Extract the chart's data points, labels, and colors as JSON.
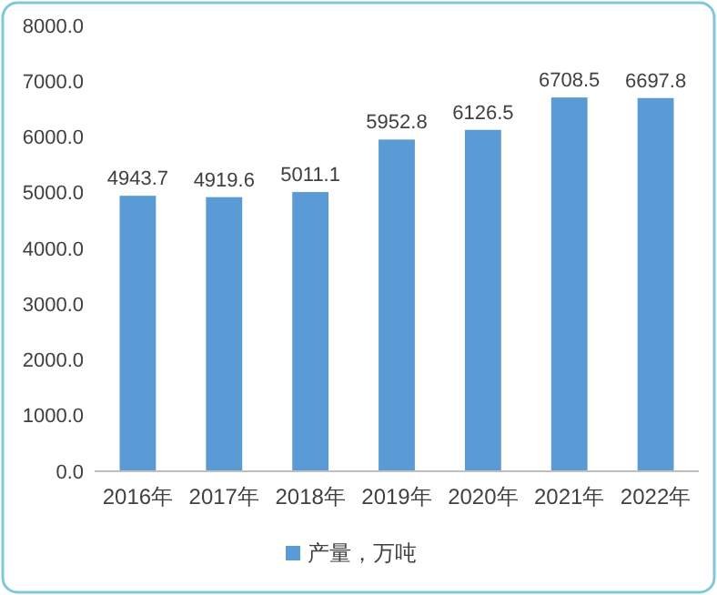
{
  "chart_data": {
    "type": "bar",
    "categories": [
      "2016年",
      "2017年",
      "2018年",
      "2019年",
      "2020年",
      "2021年",
      "2022年"
    ],
    "series": [
      {
        "name": "产量，万吨",
        "color": "#5b9bd5",
        "values": [
          4943.7,
          4919.6,
          5011.1,
          5952.8,
          6126.5,
          6708.5,
          6697.8
        ]
      }
    ],
    "ylim": [
      0,
      8000
    ],
    "yticks": [
      {
        "value": 0,
        "label": "0.0"
      },
      {
        "value": 1000,
        "label": "1000.0"
      },
      {
        "value": 2000,
        "label": "2000.0"
      },
      {
        "value": 3000,
        "label": "3000.0"
      },
      {
        "value": 4000,
        "label": "4000.0"
      },
      {
        "value": 5000,
        "label": "5000.0"
      },
      {
        "value": 6000,
        "label": "6000.0"
      },
      {
        "value": 7000,
        "label": "7000.0"
      },
      {
        "value": 8000,
        "label": "8000.0"
      }
    ],
    "data_labels": true,
    "legend": "bottom",
    "grid": false
  }
}
